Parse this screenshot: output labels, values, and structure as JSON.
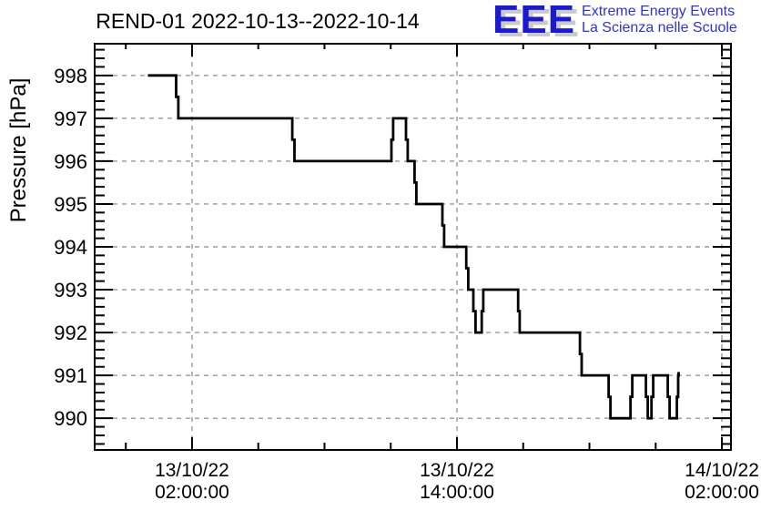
{
  "logo": {
    "acronym": "EEE",
    "line1": "Extreme Energy Events",
    "line2": "La Scienza nelle Scuole",
    "accent_blue": "#1b1bcd",
    "text_blue": "#2e35cb",
    "shadow_gray": "#c9c9c9"
  },
  "chart_data": {
    "type": "line",
    "title": "REND-01 2022-10-13--2022-10-14",
    "ylabel": "Pressure [hPa]",
    "xlabel": "",
    "x_unit": "hours since 2022-10-13 00:00:00",
    "x_domain_hours": [
      -2.41,
      26.41
    ],
    "y_domain": [
      989.26,
      998.74
    ],
    "grid": true,
    "line_color": "#000000",
    "grid_color": "#999999",
    "frame_color": "#000000",
    "y_ticks": [
      990,
      991,
      992,
      993,
      994,
      995,
      996,
      997,
      998
    ],
    "y_minor_step": 0.2,
    "x_minor_step_hours": 3,
    "x_ticks": [
      {
        "t": 2,
        "date": "13/10/22",
        "time": "02:00:00"
      },
      {
        "t": 14,
        "date": "13/10/22",
        "time": "14:00:00"
      },
      {
        "t": 26,
        "date": "14/10/22",
        "time": "02:00:00"
      }
    ],
    "series": [
      {
        "name": "Pressure",
        "points": [
          [
            0.0,
            998
          ],
          [
            1.28,
            998
          ],
          [
            1.28,
            997.5
          ],
          [
            1.38,
            997.5
          ],
          [
            1.38,
            997
          ],
          [
            6.54,
            997
          ],
          [
            6.54,
            996.5
          ],
          [
            6.64,
            996.5
          ],
          [
            6.64,
            996
          ],
          [
            11.03,
            996
          ],
          [
            11.03,
            996.5
          ],
          [
            11.11,
            996.5
          ],
          [
            11.11,
            997
          ],
          [
            11.69,
            997
          ],
          [
            11.69,
            996.5
          ],
          [
            11.77,
            996.5
          ],
          [
            11.77,
            996
          ],
          [
            12.08,
            996
          ],
          [
            12.08,
            995.5
          ],
          [
            12.16,
            995.5
          ],
          [
            12.16,
            995
          ],
          [
            13.34,
            995
          ],
          [
            13.34,
            994.5
          ],
          [
            13.42,
            994.5
          ],
          [
            13.42,
            994
          ],
          [
            14.42,
            994
          ],
          [
            14.42,
            993.5
          ],
          [
            14.51,
            993.5
          ],
          [
            14.51,
            993
          ],
          [
            14.74,
            993
          ],
          [
            14.74,
            992.5
          ],
          [
            14.84,
            992.5
          ],
          [
            14.84,
            992
          ],
          [
            15.12,
            992
          ],
          [
            15.12,
            992.5
          ],
          [
            15.19,
            992.5
          ],
          [
            15.19,
            993
          ],
          [
            16.77,
            993
          ],
          [
            16.77,
            992.5
          ],
          [
            16.84,
            992.5
          ],
          [
            16.84,
            992
          ],
          [
            19.57,
            992
          ],
          [
            19.57,
            991.5
          ],
          [
            19.65,
            991.5
          ],
          [
            19.65,
            991
          ],
          [
            20.87,
            991
          ],
          [
            20.87,
            990.5
          ],
          [
            20.95,
            990.5
          ],
          [
            20.95,
            990
          ],
          [
            21.86,
            990
          ],
          [
            21.86,
            990.5
          ],
          [
            21.94,
            990.5
          ],
          [
            21.94,
            991
          ],
          [
            22.56,
            991
          ],
          [
            22.56,
            990.5
          ],
          [
            22.64,
            990.5
          ],
          [
            22.64,
            990
          ],
          [
            22.81,
            990
          ],
          [
            22.81,
            990.5
          ],
          [
            22.89,
            990.5
          ],
          [
            22.89,
            991
          ],
          [
            23.55,
            991
          ],
          [
            23.55,
            990.5
          ],
          [
            23.63,
            990.5
          ],
          [
            23.63,
            990
          ],
          [
            23.96,
            990
          ],
          [
            23.96,
            990.5
          ],
          [
            24.02,
            990.5
          ],
          [
            24.02,
            991
          ],
          [
            24.04,
            991
          ],
          [
            24.04,
            991.08
          ]
        ]
      }
    ]
  }
}
